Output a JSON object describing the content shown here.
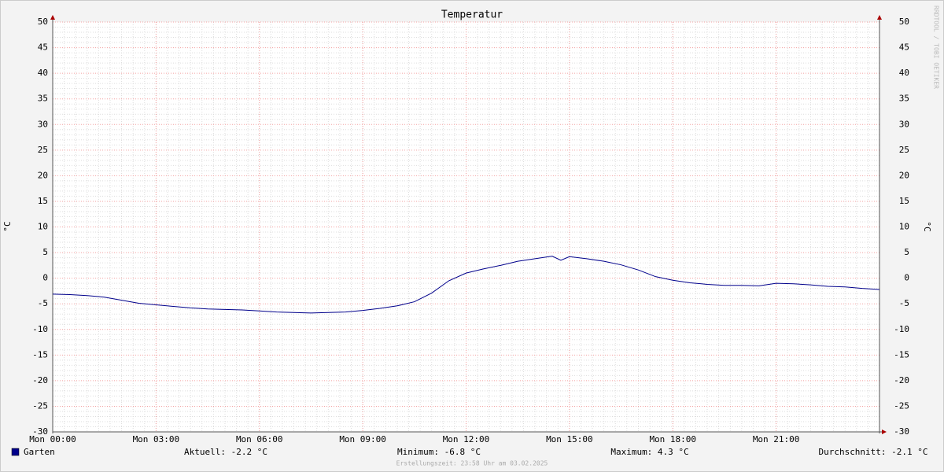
{
  "chart_data": {
    "type": "line",
    "title": "Temperatur",
    "ylabel": "°C",
    "y2label": "°C",
    "watermark": "RRDTOOL / TOBI OETIKER",
    "footer": "Erstellungszeit: 23:58 Uhr am 03.02.2025",
    "x": [
      0,
      0.5,
      1,
      1.5,
      2,
      2.5,
      3,
      3.5,
      4,
      4.5,
      5,
      5.5,
      6,
      6.5,
      7,
      7.5,
      8,
      8.5,
      9,
      9.5,
      10,
      10.5,
      11,
      11.5,
      12,
      12.5,
      13,
      13.5,
      14,
      14.5,
      14.75,
      15,
      15.5,
      16,
      16.5,
      17,
      17.5,
      18,
      18.5,
      19,
      19.5,
      20,
      20.5,
      21,
      21.5,
      22,
      22.5,
      23,
      23.5,
      24
    ],
    "series": [
      {
        "name": "Garten",
        "color": "#00008b",
        "values": [
          -3.1,
          -3.2,
          -3.4,
          -3.7,
          -4.3,
          -4.9,
          -5.2,
          -5.5,
          -5.8,
          -6.0,
          -6.1,
          -6.2,
          -6.4,
          -6.6,
          -6.7,
          -6.8,
          -6.7,
          -6.6,
          -6.3,
          -5.9,
          -5.4,
          -4.6,
          -2.9,
          -0.5,
          1.0,
          1.8,
          2.5,
          3.3,
          3.8,
          4.3,
          3.5,
          4.2,
          3.8,
          3.3,
          2.6,
          1.6,
          0.3,
          -0.4,
          -0.9,
          -1.2,
          -1.4,
          -1.4,
          -1.5,
          -1.0,
          -1.1,
          -1.3,
          -1.6,
          -1.7,
          -2.0,
          -2.2
        ]
      }
    ],
    "stats": [
      "Aktuell: -2.2 °C",
      "Minimum: -6.8 °C",
      "Maximum: 4.3 °C",
      "Durchschnitt: -2.1 °C"
    ],
    "xlim": [
      0,
      24
    ],
    "xticks": [
      {
        "value": 0,
        "label": "Mon 00:00"
      },
      {
        "value": 3,
        "label": "Mon 03:00"
      },
      {
        "value": 6,
        "label": "Mon 06:00"
      },
      {
        "value": 9,
        "label": "Mon 09:00"
      },
      {
        "value": 12,
        "label": "Mon 12:00"
      },
      {
        "value": 15,
        "label": "Mon 15:00"
      },
      {
        "value": 18,
        "label": "Mon 18:00"
      },
      {
        "value": 21,
        "label": "Mon 21:00"
      }
    ],
    "ylim": [
      -30,
      50
    ],
    "yticks": [
      -30,
      -25,
      -20,
      -15,
      -10,
      -5,
      0,
      5,
      10,
      15,
      20,
      25,
      30,
      35,
      40,
      45,
      50
    ],
    "grid": true
  }
}
